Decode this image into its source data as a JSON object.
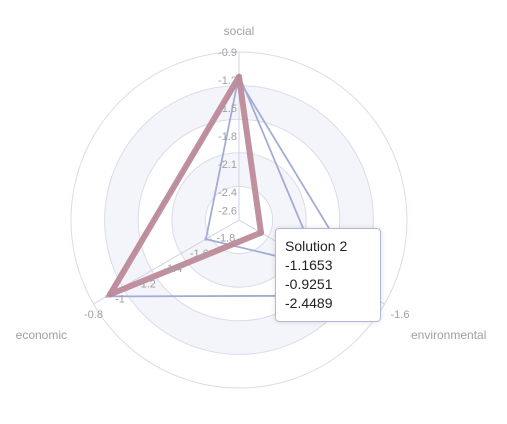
{
  "chart_data": {
    "type": "radar",
    "indicators": [
      {
        "name": "social",
        "min": -2.7,
        "max": -0.9,
        "ticks": [
          "-0.9",
          "-1.2",
          "-1.5",
          "-1.8",
          "-2.1",
          "-2.4",
          "-2.6"
        ]
      },
      {
        "name": "environmental",
        "min": -2.6,
        "max": -1.6,
        "ticks": [
          "-1.6",
          "-1.8"
        ]
      },
      {
        "name": "economic",
        "min": -1.9,
        "max": -0.8,
        "ticks": [
          "-0.8",
          "-1",
          "-1.2",
          "-1.4",
          "-1.6",
          "-1.8"
        ]
      }
    ],
    "series": [
      {
        "values": [
          -1.2,
          -1.7,
          -0.9
        ],
        "color": "#a3acd6"
      },
      {
        "values": [
          -1.15,
          -2.05,
          -1.65
        ],
        "color": "#a3acd6"
      },
      {
        "values": [
          -1.1653,
          -2.4489,
          -0.9251
        ],
        "color": "#bd8a99",
        "highlighted": true
      }
    ],
    "tooltip": {
      "title": "Solution 2",
      "lines": [
        "-1.1653",
        "-0.9251",
        "-2.4489"
      ]
    },
    "colors": {
      "axis_label": "#a0a0a0",
      "grid_line": "#dadce8",
      "band": "#f4f5fa",
      "series": "#a3acd6",
      "highlight": "#bd8a99"
    }
  }
}
